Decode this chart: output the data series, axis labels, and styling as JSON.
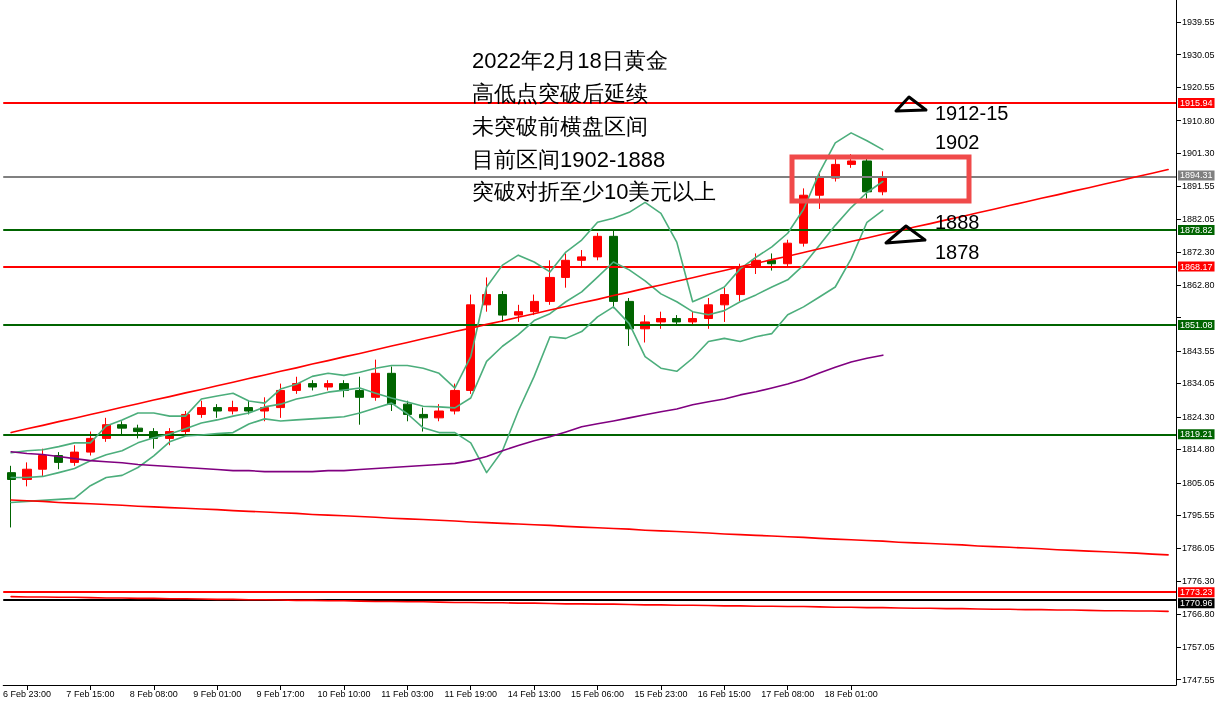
{
  "chart_data": {
    "type": "candlestick",
    "categories": [
      null,
      "6 Feb 23:00",
      null,
      null,
      null,
      "7 Feb 15:00",
      null,
      null,
      null,
      "8 Feb 08:00",
      null,
      null,
      null,
      "9 Feb 01:00",
      null,
      null,
      null,
      "9 Feb 17:00",
      null,
      null,
      null,
      "10 Feb 10:00",
      null,
      null,
      null,
      "11 Feb 03:00",
      null,
      null,
      null,
      "11 Feb 19:00",
      null,
      null,
      null,
      "14 Feb 13:00",
      null,
      null,
      null,
      "15 Feb 06:00",
      null,
      null,
      null,
      "15 Feb 23:00",
      null,
      null,
      null,
      "16 Feb 15:00",
      null,
      null,
      null,
      "17 Feb 08:00",
      null,
      null,
      null,
      "18 Feb 01:00",
      null,
      null,
      null,
      null,
      null,
      null,
      null,
      null,
      null,
      null,
      null,
      null,
      null,
      null,
      null,
      null,
      null,
      null,
      null,
      null
    ],
    "series": [
      {
        "ohlc": [
          [
            1808,
            1810,
            1792,
            1806
          ],
          [
            1806,
            1811,
            1804,
            1809
          ],
          [
            1809,
            1815,
            1807,
            1813
          ],
          [
            1813,
            1814,
            1809,
            1811
          ],
          [
            1811,
            1816,
            1810,
            1814
          ],
          [
            1814,
            1820,
            1813,
            1818
          ],
          [
            1818,
            1824,
            1817,
            1822
          ],
          [
            1822,
            1823,
            1819,
            1821
          ],
          [
            1821,
            1822,
            1818,
            1820
          ],
          [
            1820,
            1821,
            1815,
            1818
          ],
          [
            1818,
            1821,
            1816,
            1820
          ],
          [
            1820,
            1826,
            1819,
            1825
          ],
          [
            1825,
            1829,
            1824,
            1827
          ],
          [
            1827,
            1828,
            1824,
            1826
          ],
          [
            1826,
            1829,
            1825,
            1827
          ],
          [
            1827,
            1829,
            1825,
            1826
          ],
          [
            1826,
            1830,
            1823,
            1827
          ],
          [
            1827,
            1834,
            1824,
            1832
          ],
          [
            1832,
            1836,
            1831,
            1834
          ],
          [
            1834,
            1835,
            1832,
            1833
          ],
          [
            1833,
            1835,
            1832,
            1834
          ],
          [
            1834,
            1835,
            1830,
            1832
          ],
          [
            1832,
            1836,
            1822,
            1830
          ],
          [
            1830,
            1841,
            1829,
            1837
          ],
          [
            1837,
            1839,
            1826,
            1828
          ],
          [
            1828,
            1829,
            1823,
            1825
          ],
          [
            1825,
            1827,
            1820,
            1824
          ],
          [
            1824,
            1828,
            1823,
            1826
          ],
          [
            1826,
            1834,
            1825,
            1832
          ],
          [
            1832,
            1860,
            1831,
            1857
          ],
          [
            1857,
            1865,
            1855,
            1860
          ],
          [
            1860,
            1861,
            1852,
            1854
          ],
          [
            1854,
            1857,
            1852,
            1855
          ],
          [
            1855,
            1860,
            1854,
            1858
          ],
          [
            1858,
            1870,
            1857,
            1865
          ],
          [
            1865,
            1872,
            1862,
            1870
          ],
          [
            1870,
            1873,
            1868,
            1871
          ],
          [
            1871,
            1878,
            1870,
            1877
          ],
          [
            1877,
            1879,
            1856,
            1858
          ],
          [
            1858,
            1859,
            1845,
            1850
          ],
          [
            1850,
            1854,
            1846,
            1852
          ],
          [
            1852,
            1855,
            1850,
            1853
          ],
          [
            1853,
            1854,
            1851,
            1852
          ],
          [
            1852,
            1855,
            1851,
            1853
          ],
          [
            1853,
            1859,
            1850,
            1857
          ],
          [
            1857,
            1862,
            1852,
            1860
          ],
          [
            1860,
            1869,
            1858,
            1868
          ],
          [
            1868,
            1872,
            1866,
            1870
          ],
          [
            1870,
            1872,
            1867,
            1869
          ],
          [
            1869,
            1876,
            1868,
            1875
          ],
          [
            1875,
            1891,
            1874,
            1889
          ],
          [
            1889,
            1896,
            1885,
            1894
          ],
          [
            1894,
            1900,
            1893,
            1898
          ],
          [
            1898,
            1901,
            1897,
            1899
          ],
          [
            1899,
            1900,
            1888,
            1890
          ],
          [
            1890,
            1896,
            1889,
            1894.31
          ],
          null,
          null,
          null,
          null,
          null,
          null,
          null,
          null,
          null,
          null,
          null,
          null,
          null,
          null,
          null,
          null,
          null,
          null
        ],
        "colors": [
          "#006400",
          "#ff0000",
          "#ff0000",
          "#006400",
          "#ff0000",
          "#ff0000",
          "#ff0000",
          "#006400",
          "#006400",
          "#006400",
          "#ff0000",
          "#ff0000",
          "#ff0000",
          "#006400",
          "#ff0000",
          "#006400",
          "#ff0000",
          "#ff0000",
          "#ff0000",
          "#006400",
          "#ff0000",
          "#006400",
          "#006400",
          "#ff0000",
          "#006400",
          "#006400",
          "#006400",
          "#ff0000",
          "#ff0000",
          "#ff0000",
          "#ff0000",
          "#006400",
          "#ff0000",
          "#ff0000",
          "#ff0000",
          "#ff0000",
          "#ff0000",
          "#ff0000",
          "#006400",
          "#006400",
          "#ff0000",
          "#ff0000",
          "#006400",
          "#ff0000",
          "#ff0000",
          "#ff0000",
          "#ff0000",
          "#ff0000",
          "#006400",
          "#ff0000",
          "#ff0000",
          "#ff0000",
          "#ff0000",
          "#ff0000",
          "#006400",
          "#ff0000",
          null,
          null,
          null,
          null,
          null,
          null,
          null,
          null,
          null,
          null,
          null,
          null,
          null,
          null,
          null,
          null,
          null,
          null
        ]
      },
      {
        "type": "line",
        "color": "#4cae7c",
        "values": [
          1813.8,
          1814.4,
          1814.7,
          1815.6,
          1816.7,
          1816.7,
          1821.6,
          1823.4,
          1825.4,
          1825.4,
          1824.5,
          1824.5,
          1829.5,
          1830.4,
          1831.2,
          1828.9,
          1828.3,
          1832.4,
          1833.8,
          1836.1,
          1837,
          1836.4,
          1837.3,
          1838.5,
          1839.3,
          1839.3,
          1838.5,
          1837,
          1832.7,
          1841.9,
          1862.2,
          1868.6,
          1871.5,
          1869.5,
          1866.6,
          1872.4,
          1875.9,
          1881.1,
          1882.3,
          1884,
          1886.9,
          1883.7,
          1875.3,
          1857.9,
          1859.9,
          1862.2,
          1867.5,
          1870.9,
          1873.9,
          1877.9,
          1884.9,
          1895.6,
          1904.3,
          1907.2,
          1904.9,
          1902.3,
          null,
          null,
          null,
          null,
          null,
          null,
          null,
          null,
          null,
          null,
          null,
          null,
          null,
          null,
          null,
          null,
          null,
          null
        ]
      },
      {
        "type": "line",
        "color": "#4cae7c",
        "values": [
          1806.6,
          1806.6,
          1806.9,
          1808,
          1809.2,
          1811.5,
          1813.2,
          1814.4,
          1816.7,
          1818.2,
          1819.3,
          1820.8,
          1822.5,
          1823.4,
          1824.5,
          1825.4,
          1827.2,
          1828,
          1829.5,
          1830.4,
          1831.5,
          1832.1,
          1832.7,
          1831.2,
          1829.8,
          1828.6,
          1827.4,
          1827.2,
          1826.9,
          1829.8,
          1840.5,
          1844.9,
          1848.3,
          1852.4,
          1854.4,
          1857.9,
          1860.8,
          1865.1,
          1869.5,
          1867.2,
          1864,
          1860.2,
          1857.9,
          1855,
          1854.1,
          1855.3,
          1857.9,
          1859.9,
          1862.2,
          1864.3,
          1868.6,
          1874.4,
          1880.2,
          1885.4,
          1889.8,
          1893,
          null,
          null,
          null,
          null,
          null,
          null,
          null,
          null,
          null,
          null,
          null,
          null,
          null,
          null,
          null,
          null,
          null,
          null
        ]
      },
      {
        "type": "line",
        "color": "#4cae7c",
        "values": [
          1799.3,
          1799.6,
          1799.9,
          1800.2,
          1800.5,
          1804.2,
          1806.6,
          1807.2,
          1809.5,
          1812.9,
          1817,
          1818.7,
          1819,
          1819.4,
          1819.7,
          1822.2,
          1823.7,
          1823.1,
          1823.4,
          1823.7,
          1824,
          1824.3,
          1825.4,
          1826.9,
          1828.3,
          1825.2,
          1821.1,
          1819.7,
          1819.7,
          1816.7,
          1808,
          1814.4,
          1826,
          1836.1,
          1847.7,
          1847.2,
          1849.2,
          1853.5,
          1856.4,
          1851.5,
          1841.9,
          1838.5,
          1837.6,
          1841.4,
          1846.3,
          1847.2,
          1846.3,
          1847.7,
          1848.6,
          1854.1,
          1856.4,
          1859.3,
          1862.2,
          1870.4,
          1881.1,
          1884.6,
          null,
          null,
          null,
          null,
          null,
          null,
          null,
          null,
          null,
          null,
          null,
          null,
          null,
          null,
          null,
          null,
          null,
          null
        ]
      },
      {
        "type": "line",
        "color": "#800080",
        "values": [
          1814.1,
          1813.6,
          1813.3,
          1812.7,
          1812.1,
          1811.5,
          1811.2,
          1810.9,
          1810.4,
          1810.1,
          1809.8,
          1809.5,
          1809.2,
          1808.9,
          1808.6,
          1808.6,
          1808.3,
          1808.3,
          1808.3,
          1808.3,
          1808.6,
          1808.6,
          1808.9,
          1809.2,
          1809.5,
          1809.8,
          1810.1,
          1810.4,
          1810.7,
          1811.5,
          1812.7,
          1814.4,
          1815.9,
          1817.3,
          1818.5,
          1819.9,
          1821.4,
          1822.3,
          1823.1,
          1824,
          1824.9,
          1825.8,
          1826.6,
          1827.8,
          1828.7,
          1829.5,
          1830.7,
          1831.6,
          1832.7,
          1833.9,
          1835.3,
          1837.1,
          1838.8,
          1840.3,
          1841.4,
          1842.3,
          null,
          null,
          null,
          null,
          null,
          null,
          null,
          null,
          null,
          null,
          null,
          null,
          null,
          null,
          null,
          null,
          null,
          null
        ]
      },
      {
        "type": "line",
        "color": "#ff0000",
        "values": [
          1819.7,
          1820.8,
          1821.8,
          1822.9,
          1823.9,
          1825.0,
          1826.0,
          1827.1,
          1828.1,
          1829.2,
          1830.2,
          1831.3,
          1832.3,
          1833.4,
          1834.4,
          1835.5,
          1836.5,
          1837.6,
          1838.6,
          1839.7,
          1840.7,
          1841.8,
          1842.8,
          1843.9,
          1845.0,
          1846.0,
          1847.1,
          1848.1,
          1849.2,
          1850.2,
          1851.3,
          1852.3,
          1853.4,
          1854.4,
          1855.5,
          1856.5,
          1857.6,
          1858.6,
          1859.7,
          1860.7,
          1861.8,
          1862.8,
          1863.9,
          1864.9,
          1866.0,
          1867.0,
          1868.1,
          1869.1,
          1870.2,
          1871.2,
          1872.3,
          1873.4,
          1874.4,
          1875.5,
          1876.5,
          1877.6,
          1878.6,
          1879.7,
          1880.7,
          1881.8,
          1882.8,
          1883.9,
          1884.9,
          1886.0,
          1887.0,
          1888.1,
          1889.1,
          1890.2,
          1891.2,
          1892.3,
          1893.3,
          1894.4,
          1895.4,
          1896.5
        ]
      },
      {
        "type": "line",
        "color": "#ff0000",
        "values": [
          1800.0,
          1799.8,
          1799.6,
          1799.3,
          1799.1,
          1798.9,
          1798.7,
          1798.5,
          1798.2,
          1798.0,
          1797.8,
          1797.6,
          1797.4,
          1797.2,
          1796.9,
          1796.7,
          1796.5,
          1796.3,
          1796.1,
          1795.8,
          1795.6,
          1795.4,
          1795.2,
          1795.0,
          1794.7,
          1794.5,
          1794.3,
          1794.1,
          1793.9,
          1793.6,
          1793.4,
          1793.2,
          1793.0,
          1792.8,
          1792.6,
          1792.3,
          1792.1,
          1791.9,
          1791.7,
          1791.5,
          1791.2,
          1791.0,
          1790.8,
          1790.6,
          1790.4,
          1790.1,
          1789.9,
          1789.7,
          1789.5,
          1789.3,
          1789.1,
          1788.8,
          1788.6,
          1788.4,
          1788.2,
          1788.0,
          1787.7,
          1787.5,
          1787.3,
          1787.1,
          1786.9,
          1786.6,
          1786.4,
          1786.2,
          1786.0,
          1785.8,
          1785.5,
          1785.3,
          1785.1,
          1784.9,
          1784.7,
          1784.5,
          1784.2,
          1784.0
        ]
      },
      {
        "type": "line",
        "color": "#ff0000",
        "values": [
          1771.8,
          1771.7,
          1771.7,
          1771.6,
          1771.6,
          1771.5,
          1771.4,
          1771.4,
          1771.3,
          1771.3,
          1771.2,
          1771.2,
          1771.1,
          1771.0,
          1771.0,
          1770.9,
          1770.9,
          1770.8,
          1770.7,
          1770.7,
          1770.6,
          1770.6,
          1770.5,
          1770.4,
          1770.4,
          1770.3,
          1770.3,
          1770.2,
          1770.1,
          1770.1,
          1770.0,
          1770.0,
          1769.9,
          1769.9,
          1769.8,
          1769.7,
          1769.7,
          1769.6,
          1769.6,
          1769.5,
          1769.4,
          1769.4,
          1769.3,
          1769.3,
          1769.2,
          1769.1,
          1769.1,
          1769.0,
          1769.0,
          1768.9,
          1768.9,
          1768.8,
          1768.7,
          1768.7,
          1768.6,
          1768.6,
          1768.5,
          1768.4,
          1768.4,
          1768.3,
          1768.3,
          1768.2,
          1768.1,
          1768.1,
          1768.0,
          1768.0,
          1767.9,
          1767.9,
          1767.8,
          1767.7,
          1767.7,
          1767.6,
          1767.6,
          1767.5
        ]
      }
    ],
    "ylim": [
      1746,
      1946
    ],
    "yticks": [
      1939.55,
      1930.05,
      1920.55,
      {
        "value": 1910.8,
        "label": "1910.80"
      },
      {
        "value": 1901.3,
        "label": "1901.30"
      },
      1891.55,
      1882.05,
      {
        "value": 1872.3,
        "label": "1872.30"
      },
      {
        "value": 1862.8,
        "label": "1862.80"
      },
      {
        "value": 1853.3,
        "label": null
      },
      1843.55,
      1834.05,
      {
        "value": 1824.3,
        "label": "1824.30"
      },
      {
        "value": 1814.8,
        "label": "1814.80"
      },
      1805.05,
      1795.55,
      1786.05,
      {
        "value": 1776.3,
        "label": "1776.30"
      },
      {
        "value": 1766.8,
        "label": "1766.80"
      },
      1757.05,
      1747.55
    ],
    "ref_lines": [
      {
        "axis": "y",
        "value": 1915.94,
        "label": "1915.94",
        "color": "#ff0000"
      },
      {
        "axis": "y",
        "value": 1894.31,
        "label": "1894.31",
        "color": "#808080"
      },
      {
        "axis": "y",
        "value": 1878.82,
        "label": "1878.82",
        "color": "#006400"
      },
      {
        "axis": "y",
        "value": 1868.17,
        "label": "1868.17",
        "color": "#ff0000"
      },
      {
        "axis": "y",
        "value": 1851.08,
        "label": "1851.08",
        "color": "#006400"
      },
      {
        "axis": "y",
        "value": 1819.21,
        "label": "1819.21",
        "color": "#006400"
      },
      {
        "axis": "y",
        "value": 1773.23,
        "label": "1773.23",
        "color": "#ff0000"
      },
      {
        "axis": "y",
        "value": 1770.96,
        "label": "1770.96",
        "color": "#000000"
      }
    ],
    "annotations": [
      "2022年2月18日黄金",
      "高低点突破后延续",
      "未突破前横盘区间",
      "目前区间1902-1888",
      "突破对折至少10美元以上",
      "1912-15",
      "1902",
      "1888",
      "1878"
    ],
    "grid": false
  }
}
